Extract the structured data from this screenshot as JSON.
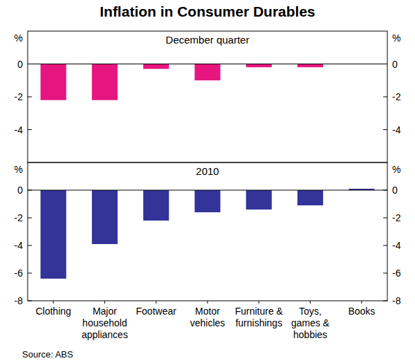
{
  "chart_data": [
    {
      "type": "bar",
      "title": "Inflation in Consumer Durables",
      "subtitle": "December quarter",
      "ylabel": "%",
      "source": "Source: ABS",
      "categories": [
        "Clothing",
        "Major household appliances",
        "Footwear",
        "Motor vehicles",
        "Furniture & furnishings",
        "Toys, games & hobbies",
        "Books"
      ],
      "values": [
        -2.2,
        -2.2,
        -0.3,
        -1.0,
        -0.2,
        -0.2,
        0
      ],
      "color": "#e6157f",
      "ylim": [
        -6,
        2
      ],
      "yticks": [
        -4,
        -2,
        0
      ],
      "grid": false,
      "tick_labels": "y"
    },
    {
      "type": "bar",
      "subtitle": "2010",
      "ylabel": "%",
      "categories": [
        "Clothing",
        "Major household appliances",
        "Footwear",
        "Motor vehicles",
        "Furniture & furnishings",
        "Toys, games & hobbies",
        "Books"
      ],
      "values": [
        -6.4,
        -3.9,
        -2.2,
        -1.6,
        -1.4,
        -1.1,
        0.1
      ],
      "color": "#333399",
      "ylim": [
        -8,
        2
      ],
      "yticks": [
        -8,
        -6,
        -4,
        -2,
        0
      ],
      "grid": false
    }
  ]
}
